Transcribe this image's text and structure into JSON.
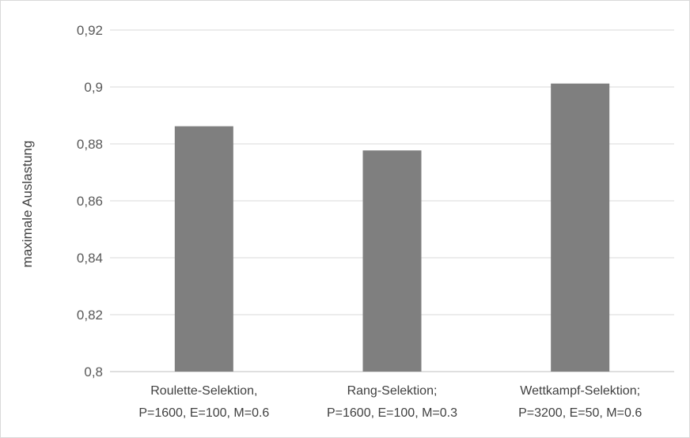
{
  "chart_data": {
    "type": "bar",
    "ylabel": "maximale Auslastung",
    "xlabel": "",
    "ylim": [
      0.8,
      0.92
    ],
    "yticks": [
      "0,8",
      "0,82",
      "0,84",
      "0,86",
      "0,88",
      "0,9",
      "0,92"
    ],
    "grid": true,
    "categories": [
      [
        "Roulette-Selektion,",
        "P=1600, E=100, M=0.6"
      ],
      [
        "Rang-Selektion;",
        "P=1600, E=100, M=0.3"
      ],
      [
        "Wettkampf-Selektion;",
        "P=3200, E=50, M=0.6"
      ]
    ],
    "values": [
      0.8862,
      0.8777,
      0.9012
    ],
    "colors": {
      "bar": "#7f7f7f",
      "grid": "#d9d9d9",
      "axis": "#bfbfbf"
    }
  }
}
